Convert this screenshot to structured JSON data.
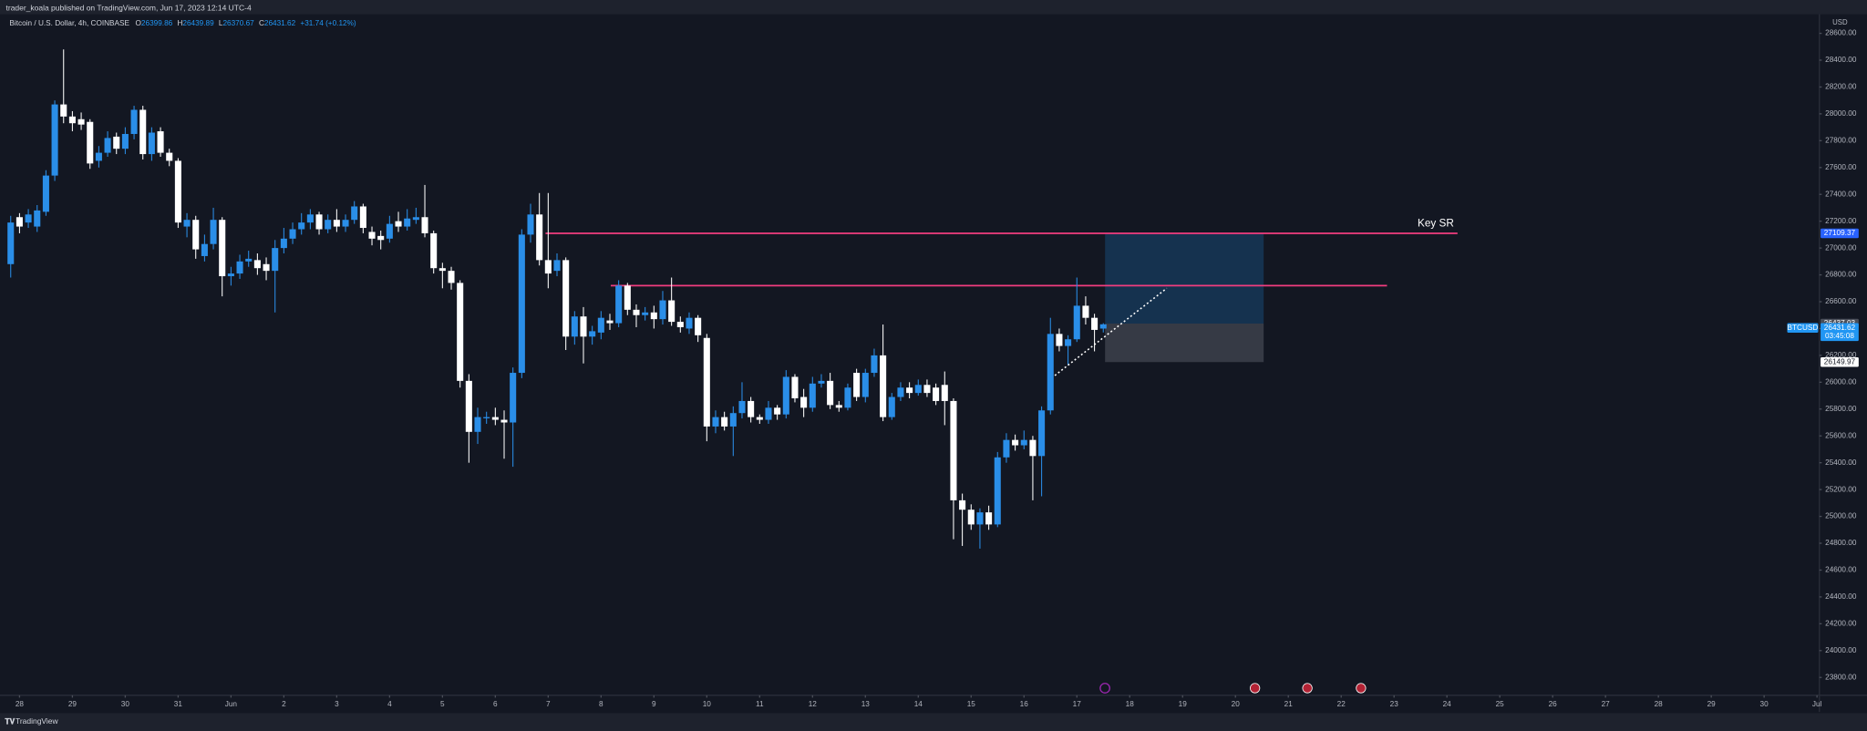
{
  "header": {
    "text": "trader_koala published on TradingView.com, Jun 17, 2023 12:14 UTC-4"
  },
  "chart_data": {
    "type": "candlestick",
    "symbol_info": "Bitcoin / U.S. Dollar, 4h, COINBASE",
    "ohlc_legend": [
      {
        "key": "O",
        "value": 26399.86
      },
      {
        "key": "H",
        "value": 26439.89
      },
      {
        "key": "L",
        "value": 26370.67
      },
      {
        "key": "C",
        "value": 26431.62
      }
    ],
    "change": "+31.74 (+0.12%)",
    "axis_unit": "USD",
    "up_color": "#2a8ee8",
    "down_color": "#ffffff",
    "open": [
      26880,
      27230,
      27190,
      27160,
      27270,
      27540,
      28070,
      27980,
      27960,
      27940,
      27650,
      27710,
      27830,
      27740,
      27850,
      28030,
      27700,
      27870,
      27710,
      27650,
      27160,
      27210,
      26940,
      27030,
      27210,
      26790,
      26810,
      26900,
      26910,
      26880,
      26830,
      27000,
      27070,
      27140,
      27190,
      27250,
      27140,
      27210,
      27160,
      27210,
      27310,
      27120,
      27090,
      27070,
      27200,
      27160,
      27210,
      27230,
      27110,
      26850,
      26830,
      26740,
      26010,
      25630,
      25740,
      25740,
      25720,
      25700,
      26070,
      27100,
      27250,
      26910,
      26830,
      26910,
      26340,
      26490,
      26340,
      26370,
      26460,
      26440,
      26720,
      26540,
      26500,
      26520,
      26470,
      26610,
      26450,
      26400,
      26480,
      26330,
      25670,
      25740,
      25670,
      25770,
      25860,
      25740,
      25720,
      25810,
      25760,
      26040,
      25890,
      25810,
      25990,
      26010,
      25830,
      25810,
      26070,
      25890,
      26070,
      26200,
      25740,
      25890,
      25960,
      25920,
      25980,
      25960,
      25980,
      25860,
      25120,
      25050,
      24940,
      25030,
      24940,
      25440,
      25570,
      25530,
      25570,
      25450,
      25790,
      26360,
      26270,
      26320,
      26570,
      26480,
      26399.86
    ],
    "high": [
      27240,
      27260,
      27290,
      27320,
      27580,
      28100,
      28480,
      28020,
      28010,
      27960,
      27760,
      27870,
      27860,
      27900,
      28060,
      28060,
      27900,
      27900,
      27740,
      27670,
      27260,
      27240,
      27100,
      27300,
      27230,
      26860,
      26950,
      26980,
      26960,
      26930,
      27060,
      27150,
      27190,
      27260,
      27290,
      27270,
      27250,
      27290,
      27250,
      27350,
      27330,
      27160,
      27130,
      27240,
      27270,
      27290,
      27300,
      27470,
      27130,
      26890,
      26860,
      26760,
      26060,
      25810,
      25780,
      25810,
      25790,
      26110,
      27140,
      27330,
      27410,
      27410,
      26960,
      26930,
      26530,
      26560,
      26420,
      26530,
      26510,
      26760,
      26740,
      26580,
      26560,
      26570,
      26680,
      26780,
      26490,
      26520,
      26500,
      26360,
      25790,
      25780,
      25820,
      26000,
      25890,
      25760,
      25860,
      25830,
      26090,
      26060,
      25950,
      26040,
      26060,
      26070,
      25860,
      25990,
      26100,
      26100,
      26250,
      26430,
      25920,
      26000,
      26000,
      26020,
      26020,
      25990,
      26080,
      25880,
      25170,
      25090,
      25060,
      25080,
      25480,
      25620,
      25610,
      25640,
      25600,
      25820,
      26480,
      26400,
      26350,
      26780,
      26640,
      26510,
      26439.89
    ],
    "low": [
      26780,
      27110,
      27150,
      27120,
      27240,
      27500,
      27930,
      27870,
      27880,
      27590,
      27600,
      27680,
      27700,
      27700,
      27810,
      27660,
      27650,
      27680,
      27610,
      27150,
      27080,
      26920,
      26900,
      26990,
      26640,
      26720,
      26770,
      26860,
      26800,
      26760,
      26520,
      26960,
      27030,
      27100,
      27140,
      27100,
      27110,
      27120,
      27120,
      27180,
      27110,
      27020,
      26990,
      27040,
      27120,
      27130,
      27180,
      27080,
      26810,
      26700,
      26690,
      25960,
      25400,
      25540,
      25690,
      25680,
      25430,
      25370,
      26030,
      27040,
      26870,
      26700,
      26790,
      26240,
      26280,
      26140,
      26280,
      26320,
      26390,
      26410,
      26500,
      26410,
      26460,
      26400,
      26430,
      26420,
      26370,
      26360,
      26300,
      25560,
      25620,
      25640,
      25450,
      25730,
      25700,
      25690,
      25690,
      25720,
      25730,
      25850,
      25740,
      25780,
      25960,
      25800,
      25780,
      25790,
      25860,
      25850,
      26040,
      25710,
      25720,
      25860,
      25880,
      25900,
      25890,
      25830,
      25680,
      24830,
      24780,
      24900,
      24760,
      24900,
      24920,
      25400,
      25490,
      25500,
      25120,
      25150,
      25760,
      26230,
      26130,
      26300,
      26430,
      26230,
      26370.67
    ],
    "close": [
      27190,
      27160,
      27250,
      27280,
      27540,
      28070,
      27980,
      27930,
      27920,
      27630,
      27710,
      27820,
      27740,
      27850,
      28030,
      27700,
      27860,
      27710,
      27650,
      27190,
      27210,
      26990,
      27030,
      27210,
      26790,
      26810,
      26900,
      26920,
      26850,
      26830,
      27000,
      27070,
      27140,
      27190,
      27250,
      27140,
      27210,
      27160,
      27210,
      27310,
      27150,
      27070,
      27060,
      27180,
      27160,
      27220,
      27230,
      27110,
      26850,
      26830,
      26740,
      26010,
      25630,
      25740,
      25740,
      25720,
      25700,
      26070,
      27100,
      27250,
      26910,
      26810,
      26910,
      26340,
      26490,
      26340,
      26380,
      26480,
      26440,
      26720,
      26540,
      26500,
      26520,
      26470,
      26610,
      26450,
      26410,
      26480,
      26350,
      25670,
      25740,
      25670,
      25770,
      25860,
      25740,
      25720,
      25810,
      25760,
      26040,
      25880,
      25810,
      25990,
      26010,
      25830,
      25810,
      25960,
      25890,
      26070,
      26200,
      25740,
      25890,
      25960,
      25920,
      25980,
      25920,
      25860,
      25860,
      25120,
      25050,
      24940,
      25030,
      24940,
      25440,
      25570,
      25530,
      25570,
      25450,
      25790,
      26360,
      26270,
      26320,
      26570,
      26480,
      26390,
      26431.62
    ],
    "xlim": [
      -0.54,
      205.27
    ],
    "xticks": [
      {
        "value": 1,
        "label": "28"
      },
      {
        "value": 7,
        "label": "29"
      },
      {
        "value": 13,
        "label": "30"
      },
      {
        "value": 19,
        "label": "31"
      },
      {
        "value": 25,
        "label": "Jun"
      },
      {
        "value": 31,
        "label": "2"
      },
      {
        "value": 37,
        "label": "3"
      },
      {
        "value": 43,
        "label": "4"
      },
      {
        "value": 49,
        "label": "5"
      },
      {
        "value": 55,
        "label": "6"
      },
      {
        "value": 61,
        "label": "7"
      },
      {
        "value": 67,
        "label": "8"
      },
      {
        "value": 73,
        "label": "9"
      },
      {
        "value": 79,
        "label": "10"
      },
      {
        "value": 85,
        "label": "11"
      },
      {
        "value": 91,
        "label": "12"
      },
      {
        "value": 97,
        "label": "13"
      },
      {
        "value": 103,
        "label": "14"
      },
      {
        "value": 109,
        "label": "15"
      },
      {
        "value": 115,
        "label": "16"
      },
      {
        "value": 121,
        "label": "17"
      },
      {
        "value": 127,
        "label": "18"
      },
      {
        "value": 133,
        "label": "19"
      },
      {
        "value": 139,
        "label": "20"
      },
      {
        "value": 145,
        "label": "21"
      },
      {
        "value": 151,
        "label": "22"
      },
      {
        "value": 157,
        "label": "23"
      },
      {
        "value": 163,
        "label": "24"
      },
      {
        "value": 169,
        "label": "25"
      },
      {
        "value": 175,
        "label": "26"
      },
      {
        "value": 181,
        "label": "27"
      },
      {
        "value": 187,
        "label": "28"
      },
      {
        "value": 193,
        "label": "29"
      },
      {
        "value": 199,
        "label": "30"
      },
      {
        "value": 205,
        "label": "Jul"
      }
    ],
    "ylim": [
      23667,
      28733
    ],
    "yticks": [
      {
        "value": 23800,
        "label": "23800.00"
      },
      {
        "value": 24000,
        "label": "24000.00"
      },
      {
        "value": 24200,
        "label": "24200.00"
      },
      {
        "value": 24400,
        "label": "24400.00"
      },
      {
        "value": 24600,
        "label": "24600.00"
      },
      {
        "value": 24800,
        "label": "24800.00"
      },
      {
        "value": 25000,
        "label": "25000.00"
      },
      {
        "value": 25200,
        "label": "25200.00"
      },
      {
        "value": 25400,
        "label": "25400.00"
      },
      {
        "value": 25600,
        "label": "25600.00"
      },
      {
        "value": 25800,
        "label": "25800.00"
      },
      {
        "value": 26000,
        "label": "26000.00"
      },
      {
        "value": 26200,
        "label": "26200.00"
      },
      {
        "value": 26400,
        "label": "26400.00"
      },
      {
        "value": 26600,
        "label": "26600.00"
      },
      {
        "value": 26800,
        "label": "26800.00"
      },
      {
        "value": 27000,
        "label": "27000.00"
      },
      {
        "value": 27200,
        "label": "27200.00"
      },
      {
        "value": 27400,
        "label": "27400.00"
      },
      {
        "value": 27600,
        "label": "27600.00"
      },
      {
        "value": 27800,
        "label": "27800.00"
      },
      {
        "value": 28000,
        "label": "28000.00"
      },
      {
        "value": 28200,
        "label": "28200.00"
      },
      {
        "value": 28400,
        "label": "28400.00"
      },
      {
        "value": 28600,
        "label": "28600.00"
      }
    ],
    "levels": [
      {
        "label": "Key SR",
        "value": 27109.37,
        "x_range": [
          60.7,
          164.2
        ],
        "color": "#f23d7f"
      },
      {
        "value": 26720,
        "x_range": [
          68.1,
          156.2
        ],
        "color": "#f23d7f"
      }
    ],
    "position": {
      "x_range": [
        124.2,
        142.2
      ],
      "target": 27109.37,
      "entry": 26437.03,
      "stop": 26149.97
    },
    "trend_line": {
      "x": [
        118.5,
        131.2
      ],
      "y": [
        26050,
        26700
      ]
    },
    "last_price": {
      "symbol": "BTCUSD",
      "value": 26431.62,
      "countdown": "03:45:08"
    }
  },
  "footer": {
    "brand": "TradingView"
  }
}
